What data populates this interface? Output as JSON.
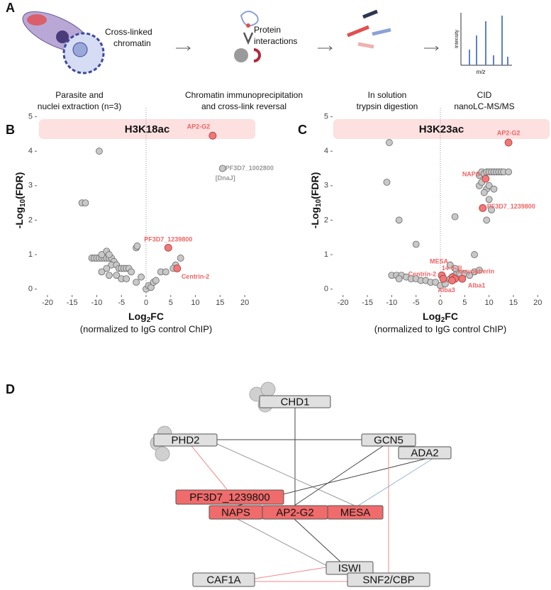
{
  "panel_a": {
    "label": "A",
    "steps": [
      {
        "lines": [
          "Parasite and",
          "nuclei extraction (n=3)"
        ]
      },
      {
        "lines": [
          "Chromatin immunoprecipitation",
          "and cross-link reversal"
        ]
      },
      {
        "lines": [
          "In solution",
          "trypsin digestion"
        ]
      },
      {
        "lines": [
          "CID",
          "nanoLC-MS/MS"
        ]
      }
    ],
    "illustration_labels": {
      "chromatin": [
        "Cross-linked",
        "chromatin"
      ],
      "proteins": [
        "Protein",
        "interactions"
      ],
      "intensity": "Intensity",
      "mz": "m/z"
    }
  },
  "chart_data": [
    {
      "type": "scatter",
      "panel": "B",
      "title": "H3K18ac",
      "xlabel_parts": [
        "Log",
        "2",
        "FC"
      ],
      "xlabel_note": "(normalized to IgG control ChIP)",
      "ylabel_parts": [
        "-Log",
        "10",
        "(FDR)"
      ],
      "xlim": [
        -22,
        22
      ],
      "ylim": [
        -0.15,
        5.3
      ],
      "xticks": [
        -20,
        -15,
        -10,
        -5,
        0,
        5,
        10,
        15,
        20
      ],
      "yticks": [
        0,
        1,
        2,
        3,
        4,
        5
      ],
      "series": [
        {
          "color": "#c8c8c8",
          "x": [
            -9.5,
            -13,
            -12.3,
            -11,
            -10.5,
            -10,
            -9.5,
            -9,
            -8.5,
            -8,
            -7.5,
            -7,
            -9,
            -8,
            -7.5,
            -6.5,
            -7,
            -6,
            -5.5,
            -5,
            -4.5,
            -4,
            -3.5,
            -8,
            -9,
            -7.5,
            -6,
            -5,
            -4,
            -3,
            -2,
            -1,
            -2,
            -1.8,
            0,
            0.5,
            1,
            1.5,
            2,
            3,
            4,
            6,
            7,
            5.5
          ],
          "values": [
            4.0,
            2.5,
            2.5,
            0.9,
            0.9,
            0.9,
            0.9,
            0.9,
            0.9,
            0.9,
            0.9,
            0.9,
            1.0,
            1.1,
            1.0,
            0.8,
            0.7,
            0.7,
            0.6,
            0.6,
            0.6,
            0.6,
            0.6,
            0.6,
            0.5,
            0.4,
            0.4,
            0.3,
            0.3,
            0.5,
            0.2,
            0.35,
            1.2,
            1.25,
            0.0,
            0.1,
            0.05,
            0.2,
            0.25,
            0.5,
            0.5,
            0.7,
            0.9,
            0.6
          ]
        },
        {
          "color": "#c8c8c8",
          "label_color": "#999999",
          "x": [
            15.5
          ],
          "values": [
            3.5
          ],
          "labels": [
            [
              "PF3D7_1002800",
              "[DnaJ]"
            ]
          ]
        },
        {
          "color": "#f07878",
          "label_color": "#f06464",
          "x": [
            13.5,
            4.5,
            6.3
          ],
          "values": [
            4.45,
            1.2,
            0.6
          ],
          "labels": [
            "AP2-G2",
            "PF3D7_1239800",
            "Centrin-2"
          ]
        }
      ]
    },
    {
      "type": "scatter",
      "panel": "C",
      "title": "H3K23ac",
      "xlabel_parts": [
        "Log",
        "2",
        "FC"
      ],
      "xlabel_note": "(normalized to IgG control ChIP)",
      "ylabel_parts": [
        "-Log",
        "10",
        "(FDR)"
      ],
      "xlim": [
        -22,
        22
      ],
      "ylim": [
        -0.15,
        5.3
      ],
      "xticks": [
        -20,
        -15,
        -10,
        -5,
        0,
        5,
        10,
        15,
        20
      ],
      "yticks": [
        0,
        1,
        2,
        3,
        4,
        5
      ],
      "series": [
        {
          "color": "#c8c8c8",
          "x": [
            -10.5,
            -11,
            -8.5,
            -5,
            3,
            7,
            9.5,
            10,
            9.5,
            8,
            8.5,
            9,
            9.5,
            10,
            10.5,
            11,
            11.5,
            12,
            12.5,
            13,
            14,
            8,
            8.5,
            10,
            11,
            9,
            10.5,
            -10,
            -9,
            -8,
            -7,
            -6,
            -5,
            -4,
            -3,
            -2,
            -1,
            0,
            1,
            2,
            3,
            4,
            5,
            6,
            7,
            8,
            -8.5,
            2,
            3
          ],
          "values": [
            4.25,
            3.1,
            2.0,
            1.3,
            2.1,
            1.0,
            2.9,
            2.6,
            2.0,
            3.3,
            3.4,
            3.35,
            3.4,
            3.4,
            3.4,
            3.4,
            3.4,
            3.4,
            3.4,
            3.4,
            3.4,
            3.0,
            3.1,
            3.0,
            2.9,
            2.8,
            2.3,
            0.4,
            0.4,
            0.4,
            0.35,
            0.3,
            0.3,
            0.25,
            0.25,
            0.2,
            0.2,
            0.1,
            0.15,
            0.3,
            0.4,
            0.45,
            0.45,
            0.4,
            0.5,
            0.55,
            0.3,
            0.7,
            0.6
          ]
        },
        {
          "color": "#f07878",
          "label_color": "#f06464",
          "x": [
            14,
            9.3,
            8.7,
            0.3,
            0.6,
            2.5,
            3,
            4.5,
            2.4
          ],
          "values": [
            4.25,
            3.2,
            2.35,
            0.4,
            0.3,
            0.35,
            0.3,
            0.3,
            0.25
          ],
          "labels": [
            "AP2-G2",
            "NAPS",
            "PF3D7_1239800",
            "MESA",
            "Centrin-2",
            "14-3-3I",
            "karyopherin",
            "Alba1",
            "Alba3"
          ]
        }
      ]
    }
  ],
  "network": {
    "label": "D",
    "nodes": [
      {
        "label": "CHD1",
        "color": "#e0e0e0"
      },
      {
        "label": "PHD2",
        "color": "#e0e0e0"
      },
      {
        "label": "GCN5",
        "color": "#e0e0e0"
      },
      {
        "label": "ADA2",
        "color": "#e0e0e0"
      },
      {
        "label": "PF3D7_1239800",
        "color": "#f06b6b"
      },
      {
        "label": "NAPS",
        "color": "#f06b6b"
      },
      {
        "label": "AP2-G2",
        "color": "#f06b6b"
      },
      {
        "label": "MESA",
        "color": "#f06b6b"
      },
      {
        "label": "ISWI",
        "color": "#e0e0e0"
      },
      {
        "label": "CAF1A",
        "color": "#e0e0e0"
      },
      {
        "label": "SNF2/CBP",
        "color": "#e0e0e0"
      }
    ]
  }
}
